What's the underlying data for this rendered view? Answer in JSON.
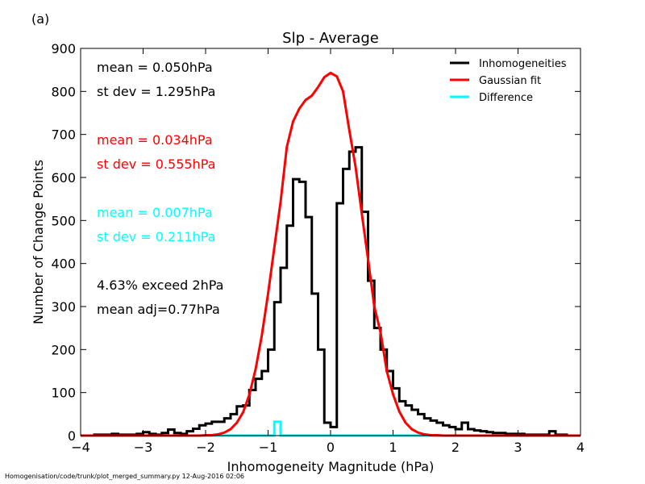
{
  "panel_label": "(a)",
  "footer": "Homogenisation/code/trunk/plot_merged_summary.py   12-Aug-2016 02:06",
  "colors": {
    "inhomogeneities": "#000000",
    "gaussian": "#ff0000",
    "difference": "#00ffff"
  },
  "stats": {
    "inhomogeneities": [
      "mean =  0.050hPa",
      "st dev =  1.295hPa"
    ],
    "gaussian": [
      "mean =  0.034hPa",
      "st dev =  0.555hPa"
    ],
    "difference": [
      "mean =  0.007hPa",
      "st dev =  0.211hPa"
    ],
    "extra": [
      "4.63% exceed 2hPa",
      "mean adj=0.77hPa"
    ]
  },
  "chart_data": {
    "type": "line",
    "title": "Slp - Average",
    "xlabel": "Inhomogeneity Magnitude (hPa)",
    "ylabel": "Number of Change Points",
    "xlim": [
      -4,
      4
    ],
    "ylim": [
      0,
      900
    ],
    "xticks": [
      -4,
      -3,
      -2,
      -1,
      0,
      1,
      2,
      3,
      4
    ],
    "yticks": [
      0,
      100,
      200,
      300,
      400,
      500,
      600,
      700,
      800,
      900
    ],
    "legend_position": "top-right",
    "series": [
      {
        "name": "Inhomogeneities",
        "style": "step",
        "bin_edges": [
          -3.8,
          -3.7,
          -3.6,
          -3.5,
          -3.4,
          -3.3,
          -3.2,
          -3.1,
          -3.0,
          -2.9,
          -2.8,
          -2.7,
          -2.6,
          -2.5,
          -2.4,
          -2.3,
          -2.2,
          -2.1,
          -2.0,
          -1.9,
          -1.8,
          -1.7,
          -1.6,
          -1.5,
          -1.4,
          -1.3,
          -1.2,
          -1.1,
          -1.0,
          -0.9,
          -0.8,
          -0.7,
          -0.6,
          -0.5,
          -0.4,
          -0.3,
          -0.2,
          -0.1,
          0.0,
          0.1,
          0.2,
          0.3,
          0.4,
          0.5,
          0.6,
          0.7,
          0.8,
          0.9,
          1.0,
          1.1,
          1.2,
          1.3,
          1.4,
          1.5,
          1.6,
          1.7,
          1.8,
          1.9,
          2.0,
          2.1,
          2.2,
          2.3,
          2.4,
          2.5,
          2.6,
          2.7,
          2.8,
          2.9,
          3.0,
          3.1,
          3.2,
          3.3,
          3.4,
          3.5,
          3.6,
          3.7,
          3.8
        ],
        "values": [
          2,
          2,
          2,
          4,
          2,
          2,
          2,
          4,
          8,
          4,
          2,
          6,
          14,
          6,
          4,
          10,
          16,
          24,
          28,
          32,
          32,
          40,
          50,
          68,
          70,
          106,
          132,
          150,
          200,
          310,
          390,
          488,
          596,
          590,
          508,
          330,
          200,
          30,
          20,
          540,
          620,
          660,
          670,
          520,
          360,
          250,
          200,
          150,
          110,
          80,
          70,
          60,
          50,
          40,
          35,
          30,
          24,
          20,
          15,
          30,
          15,
          12,
          10,
          8,
          6,
          6,
          4,
          4,
          4,
          2,
          2,
          2,
          2,
          10,
          2,
          2
        ]
      },
      {
        "name": "Gaussian fit",
        "style": "line",
        "x": [
          -4.0,
          -3.9,
          -3.8,
          -3.7,
          -3.6,
          -3.5,
          -3.4,
          -3.3,
          -3.2,
          -3.1,
          -3.0,
          -2.9,
          -2.8,
          -2.7,
          -2.6,
          -2.5,
          -2.4,
          -2.3,
          -2.2,
          -2.1,
          -2.0,
          -1.9,
          -1.8,
          -1.7,
          -1.6,
          -1.5,
          -1.4,
          -1.3,
          -1.2,
          -1.1,
          -1.0,
          -0.9,
          -0.8,
          -0.7,
          -0.6,
          -0.5,
          -0.4,
          -0.3,
          -0.2,
          -0.1,
          0.0,
          0.1,
          0.2,
          0.3,
          0.4,
          0.5,
          0.6,
          0.7,
          0.8,
          0.9,
          1.0,
          1.1,
          1.2,
          1.3,
          1.4,
          1.5,
          1.6,
          1.7,
          1.8,
          1.9,
          2.0,
          2.1,
          2.2,
          2.3,
          2.4,
          2.5,
          2.6,
          2.7,
          2.8,
          2.9,
          3.0,
          3.1,
          3.2,
          3.3,
          3.4,
          3.5,
          3.6,
          3.7,
          3.8,
          3.9,
          4.0
        ],
        "values": [
          0,
          0,
          0,
          0,
          0,
          0,
          0,
          0,
          0,
          0,
          0,
          0,
          0,
          0,
          0,
          0,
          0,
          0,
          0,
          0,
          1,
          1,
          3,
          7,
          15,
          30,
          54,
          95,
          154,
          233,
          330,
          437,
          543,
          671,
          730,
          760,
          780,
          790,
          810,
          833,
          843,
          835,
          800,
          710,
          625,
          516,
          410,
          300,
          240,
          150,
          96,
          56,
          30,
          15,
          7,
          3,
          1,
          1,
          0,
          0,
          0,
          0,
          0,
          0,
          0,
          0,
          0,
          0,
          0,
          0,
          0,
          0,
          0,
          0,
          0,
          0,
          0,
          0,
          0,
          0,
          0
        ]
      },
      {
        "name": "Difference",
        "style": "step",
        "bin_edges": [
          -4.0,
          -3.9,
          -3.8,
          -3.7,
          -3.6,
          -3.5,
          -3.4,
          -3.3,
          -3.2,
          -3.1,
          -3.0,
          -2.9,
          -2.8,
          -2.7,
          -2.6,
          -2.5,
          -2.4,
          -2.3,
          -2.2,
          -2.1,
          -2.0,
          -1.9,
          -1.8,
          -1.7,
          -1.6,
          -1.5,
          -1.4,
          -1.3,
          -1.2,
          -1.1,
          -1.0,
          -0.9,
          -0.8,
          -0.7,
          -0.6,
          -0.5,
          -0.4,
          -0.3,
          -0.2,
          -0.1,
          0.0,
          0.1,
          0.2,
          0.3,
          0.4,
          0.5,
          0.6,
          0.7,
          0.8,
          0.9,
          1.0,
          1.1,
          1.2,
          1.3,
          1.4,
          1.5,
          1.6,
          1.7,
          1.8,
          1.9,
          2.0,
          2.1,
          2.2,
          2.3,
          2.4,
          2.5,
          2.6,
          2.7,
          2.8,
          2.9,
          3.0,
          3.1,
          3.2,
          3.3,
          3.4,
          3.5,
          3.6,
          3.7,
          3.8,
          3.9,
          4.0
        ],
        "values": [
          0,
          0,
          0,
          0,
          0,
          0,
          0,
          0,
          0,
          0,
          0,
          0,
          0,
          0,
          0,
          0,
          0,
          0,
          0,
          0,
          0,
          0,
          0,
          0,
          0,
          0,
          0,
          0,
          0,
          0,
          0,
          32,
          0,
          0,
          0,
          0,
          0,
          0,
          0,
          0,
          0,
          0,
          0,
          0,
          0,
          0,
          0,
          0,
          0,
          0,
          0,
          0,
          0,
          0,
          0,
          0,
          0,
          0,
          0,
          0,
          0,
          0,
          0,
          0,
          0,
          0,
          0,
          0,
          0,
          0,
          0,
          0,
          0,
          0,
          0,
          0,
          0,
          0,
          0,
          0
        ]
      }
    ]
  }
}
